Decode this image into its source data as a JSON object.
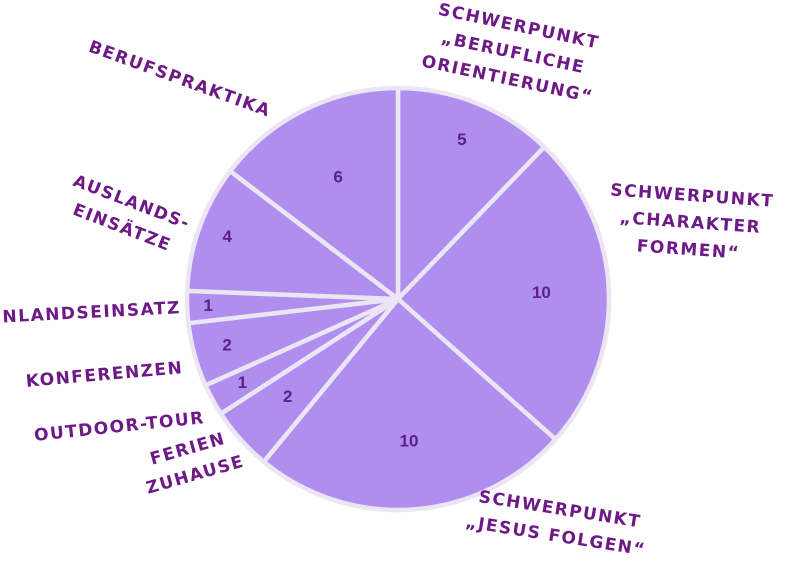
{
  "chart_data": {
    "type": "pie",
    "colors": {
      "slice": "#b08ef0",
      "separator": "#ece6f4",
      "value_text": "#5b2189",
      "label_text": "#6d1a86"
    },
    "slices": [
      {
        "label": "Schwerpunkt „berufliche Orientierung“",
        "lines": [
          "SCHWERPUNKT",
          "„BERUFLICHE",
          "ORIENTIERUNG“"
        ],
        "value": 5
      },
      {
        "label": "Schwerpunkt „Charakter formen“",
        "lines": [
          "SCHWERPUNKT",
          "„CHARAKTER",
          "FORMEN“"
        ],
        "value": 10
      },
      {
        "label": "Schwerpunkt „Jesus folgen“",
        "lines": [
          "SCHWERPUNKT",
          "„JESUS FOLGEN“"
        ],
        "value": 10
      },
      {
        "label": "Ferien zuhause",
        "lines": [
          "FERIEN",
          "ZUHAUSE"
        ],
        "value": 2
      },
      {
        "label": "Outdoor-Tour",
        "lines": [
          "OUTDOOR-TOUR"
        ],
        "value": 1
      },
      {
        "label": "Konferenzen",
        "lines": [
          "KONFERENZEN"
        ],
        "value": 2
      },
      {
        "label": "Inlandseinsatz",
        "lines": [
          "INLANDSEINSATZ"
        ],
        "value": 1
      },
      {
        "label": "Auslandseinsätze",
        "lines": [
          "AUSLANDS-",
          "EINSÄTZE"
        ],
        "value": 4
      },
      {
        "label": "Berufspraktika",
        "lines": [
          "BERUFSPRAKTIKA"
        ],
        "value": 6
      }
    ]
  }
}
